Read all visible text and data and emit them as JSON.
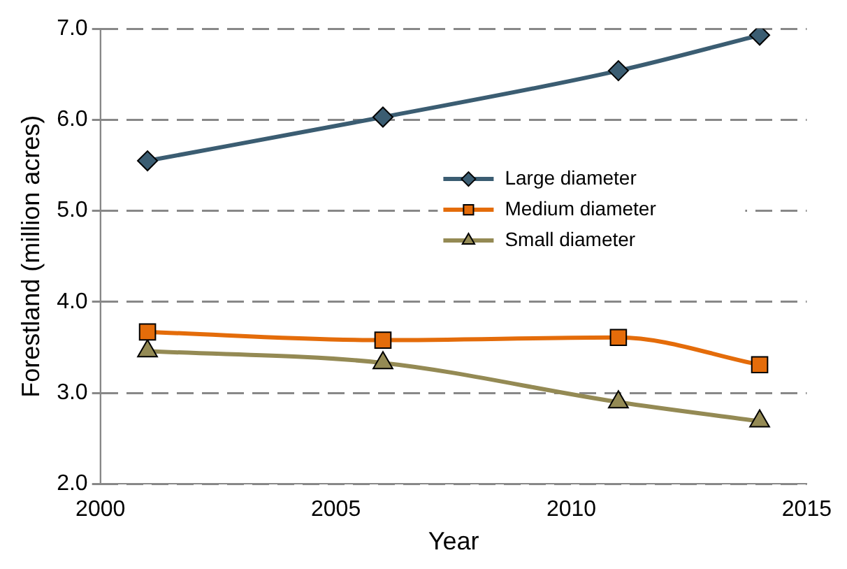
{
  "chart_data": {
    "type": "line",
    "xlabel": "Year",
    "ylabel": "Forestland (million acres)",
    "xlim": [
      2000,
      2015
    ],
    "xticks": [
      2000,
      2005,
      2010,
      2015
    ],
    "ylim": [
      2,
      7
    ],
    "yticks": [
      {
        "value": 2,
        "label": "2.0"
      },
      {
        "value": 3,
        "label": "3.0"
      },
      {
        "value": 4,
        "label": "4.0"
      },
      {
        "value": 5,
        "label": "5.0"
      },
      {
        "value": 6,
        "label": "6.0"
      },
      {
        "value": 7,
        "label": "7.0"
      }
    ],
    "x": [
      2001,
      2006,
      2011,
      2014
    ],
    "series": [
      {
        "name": "Large diameter",
        "color": "#3b5d72",
        "marker": "diamond",
        "values": [
          5.55,
          6.03,
          6.54,
          6.93
        ]
      },
      {
        "name": "Medium diameter",
        "color": "#e46c0a",
        "marker": "square",
        "values": [
          3.67,
          3.58,
          3.61,
          3.31
        ]
      },
      {
        "name": "Small diameter",
        "color": "#948a54",
        "marker": "triangle",
        "values": [
          3.46,
          3.33,
          2.9,
          2.69
        ]
      }
    ],
    "grid": "y",
    "line_style": "solid",
    "legend": "right"
  }
}
